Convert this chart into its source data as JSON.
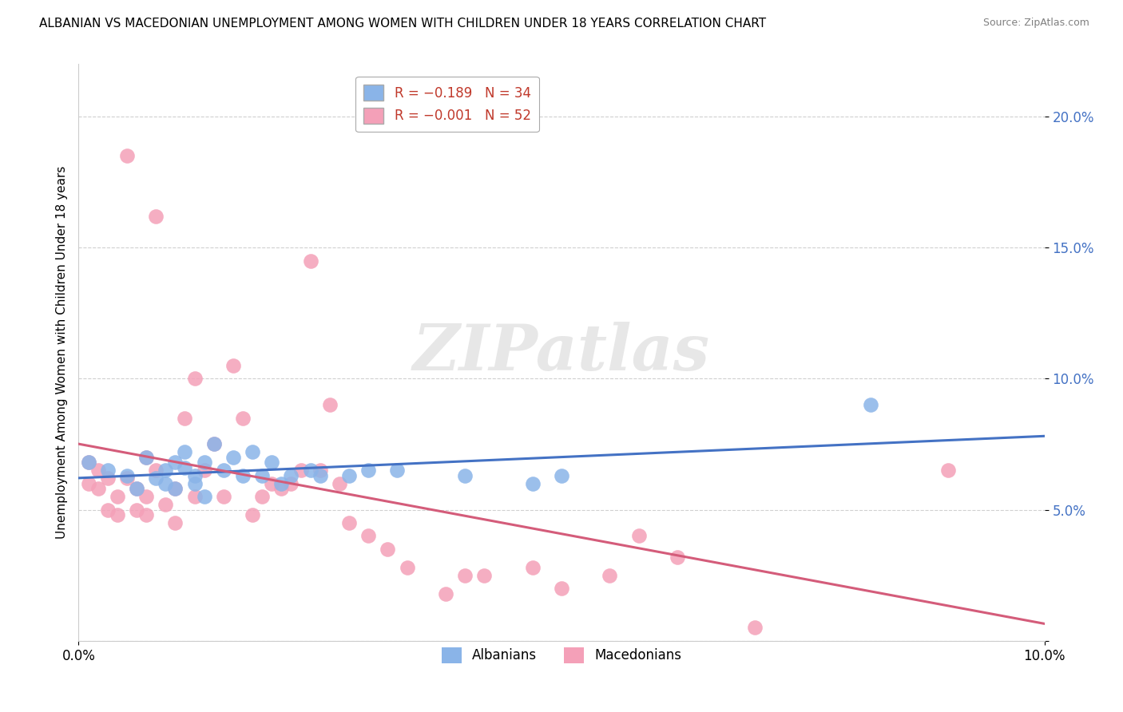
{
  "title": "ALBANIAN VS MACEDONIAN UNEMPLOYMENT AMONG WOMEN WITH CHILDREN UNDER 18 YEARS CORRELATION CHART",
  "source": "Source: ZipAtlas.com",
  "ylabel": "Unemployment Among Women with Children Under 18 years",
  "xlim": [
    0.0,
    0.1
  ],
  "ylim": [
    0.0,
    0.22
  ],
  "yticks": [
    0.0,
    0.05,
    0.1,
    0.15,
    0.2
  ],
  "ytick_labels": [
    "",
    "5.0%",
    "10.0%",
    "15.0%",
    "20.0%"
  ],
  "legend_albanian": "R = −0.189   N = 34",
  "legend_macedonian": "R = −0.001   N = 52",
  "color_albanian": "#8ab4e8",
  "color_macedonian": "#f4a0b8",
  "line_color_albanian": "#4472c4",
  "line_color_macedonian": "#d45c7a",
  "ytick_color": "#4472c4",
  "watermark_text": "ZIPatlas",
  "albanian_x": [
    0.001,
    0.003,
    0.005,
    0.006,
    0.007,
    0.008,
    0.009,
    0.009,
    0.01,
    0.01,
    0.011,
    0.011,
    0.012,
    0.012,
    0.013,
    0.013,
    0.014,
    0.015,
    0.016,
    0.017,
    0.018,
    0.019,
    0.02,
    0.021,
    0.022,
    0.024,
    0.025,
    0.028,
    0.03,
    0.033,
    0.04,
    0.047,
    0.05,
    0.082
  ],
  "albanian_y": [
    0.068,
    0.065,
    0.063,
    0.058,
    0.07,
    0.062,
    0.065,
    0.06,
    0.068,
    0.058,
    0.066,
    0.072,
    0.063,
    0.06,
    0.068,
    0.055,
    0.075,
    0.065,
    0.07,
    0.063,
    0.072,
    0.063,
    0.068,
    0.06,
    0.063,
    0.065,
    0.063,
    0.063,
    0.065,
    0.065,
    0.063,
    0.06,
    0.063,
    0.09
  ],
  "macedonian_x": [
    0.001,
    0.001,
    0.002,
    0.002,
    0.003,
    0.003,
    0.004,
    0.004,
    0.005,
    0.005,
    0.006,
    0.006,
    0.007,
    0.007,
    0.007,
    0.008,
    0.008,
    0.009,
    0.01,
    0.01,
    0.011,
    0.012,
    0.012,
    0.013,
    0.014,
    0.015,
    0.016,
    0.017,
    0.018,
    0.019,
    0.02,
    0.021,
    0.022,
    0.023,
    0.024,
    0.025,
    0.026,
    0.027,
    0.028,
    0.03,
    0.032,
    0.034,
    0.038,
    0.04,
    0.042,
    0.047,
    0.05,
    0.055,
    0.058,
    0.062,
    0.07,
    0.09
  ],
  "macedonian_y": [
    0.068,
    0.06,
    0.065,
    0.058,
    0.062,
    0.05,
    0.055,
    0.048,
    0.185,
    0.062,
    0.05,
    0.058,
    0.07,
    0.055,
    0.048,
    0.162,
    0.065,
    0.052,
    0.058,
    0.045,
    0.085,
    0.055,
    0.1,
    0.065,
    0.075,
    0.055,
    0.105,
    0.085,
    0.048,
    0.055,
    0.06,
    0.058,
    0.06,
    0.065,
    0.145,
    0.065,
    0.09,
    0.06,
    0.045,
    0.04,
    0.035,
    0.028,
    0.018,
    0.025,
    0.025,
    0.028,
    0.02,
    0.025,
    0.04,
    0.032,
    0.005,
    0.065
  ]
}
